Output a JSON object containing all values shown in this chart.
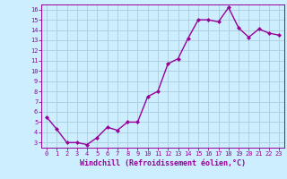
{
  "x": [
    0,
    1,
    2,
    3,
    4,
    5,
    6,
    7,
    8,
    9,
    10,
    11,
    12,
    13,
    14,
    15,
    16,
    17,
    18,
    19,
    20,
    21,
    22,
    23
  ],
  "y": [
    5.5,
    4.3,
    3.0,
    3.0,
    2.8,
    3.5,
    4.5,
    4.2,
    5.0,
    5.0,
    7.5,
    8.0,
    10.7,
    11.2,
    13.2,
    15.0,
    15.0,
    14.8,
    16.2,
    14.2,
    13.3,
    14.1,
    13.7,
    13.5
  ],
  "line_color": "#990099",
  "marker": "D",
  "marker_size": 2,
  "linewidth": 1.0,
  "bg_color": "#cceeff",
  "grid_color": "#aaccdd",
  "xlabel": "Windchill (Refroidissement éolien,°C)",
  "xlabel_color": "#990099",
  "tick_color": "#990099",
  "ylim": [
    2.5,
    16.5
  ],
  "xlim": [
    -0.5,
    23.5
  ],
  "yticks": [
    3,
    4,
    5,
    6,
    7,
    8,
    9,
    10,
    11,
    12,
    13,
    14,
    15,
    16
  ],
  "xticks": [
    0,
    1,
    2,
    3,
    4,
    5,
    6,
    7,
    8,
    9,
    10,
    11,
    12,
    13,
    14,
    15,
    16,
    17,
    18,
    19,
    20,
    21,
    22,
    23
  ],
  "font_size_ticks": 5.0,
  "font_size_xlabel": 6.0
}
